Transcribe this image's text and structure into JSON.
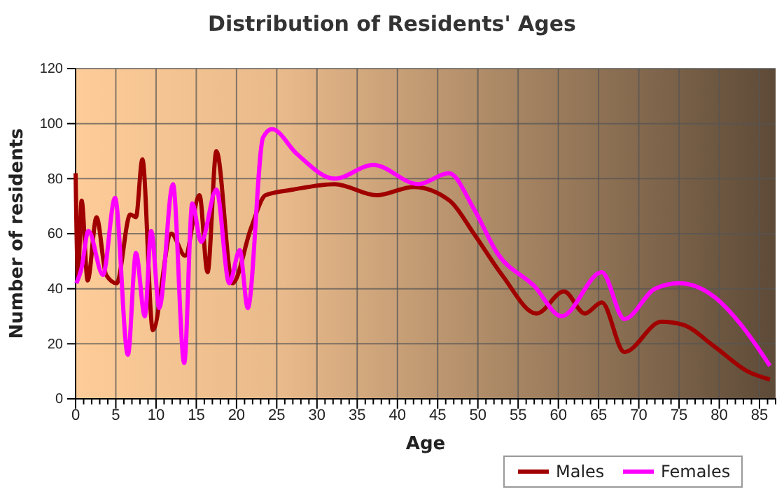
{
  "chart_data": {
    "type": "line",
    "title": "Distribution of Residents' Ages",
    "xlabel": "Age",
    "ylabel": "Number of residents",
    "xlim": [
      0,
      87
    ],
    "ylim": [
      0,
      120
    ],
    "xticks": [
      0,
      {
        "value": 1,
        "label": null
      },
      {
        "value": 2,
        "label": null
      },
      {
        "value": 3,
        "label": null
      },
      {
        "value": 4,
        "label": null
      },
      5,
      {
        "value": 6,
        "label": null
      },
      {
        "value": 7,
        "label": null
      },
      {
        "value": 8,
        "label": null
      },
      {
        "value": 9,
        "label": null
      },
      10,
      {
        "value": 11,
        "label": null
      },
      {
        "value": 12,
        "label": null
      },
      {
        "value": 13,
        "label": null
      },
      {
        "value": 14,
        "label": null
      },
      15,
      {
        "value": 16,
        "label": null
      },
      {
        "value": 17,
        "label": null
      },
      {
        "value": 18,
        "label": null
      },
      {
        "value": 19,
        "label": null
      },
      20,
      {
        "value": 21,
        "label": null
      },
      {
        "value": 22,
        "label": null
      },
      {
        "value": 23,
        "label": null
      },
      {
        "value": 24,
        "label": null
      },
      25,
      {
        "value": 26,
        "label": null
      },
      {
        "value": 27,
        "label": null
      },
      {
        "value": 28,
        "label": null
      },
      {
        "value": 29,
        "label": null
      },
      30,
      {
        "value": 31,
        "label": null
      },
      {
        "value": 32,
        "label": null
      },
      {
        "value": 33,
        "label": null
      },
      {
        "value": 34,
        "label": null
      },
      35,
      {
        "value": 36,
        "label": null
      },
      {
        "value": 37,
        "label": null
      },
      {
        "value": 38,
        "label": null
      },
      {
        "value": 39,
        "label": null
      },
      40,
      {
        "value": 41,
        "label": null
      },
      {
        "value": 42,
        "label": null
      },
      {
        "value": 43,
        "label": null
      },
      {
        "value": 44,
        "label": null
      },
      45,
      {
        "value": 46,
        "label": null
      },
      {
        "value": 47,
        "label": null
      },
      {
        "value": 48,
        "label": null
      },
      {
        "value": 49,
        "label": null
      },
      50,
      {
        "value": 51,
        "label": null
      },
      {
        "value": 52,
        "label": null
      },
      {
        "value": 53,
        "label": null
      },
      {
        "value": 54,
        "label": null
      },
      55,
      {
        "value": 56,
        "label": null
      },
      {
        "value": 57,
        "label": null
      },
      {
        "value": 58,
        "label": null
      },
      {
        "value": 59,
        "label": null
      },
      60,
      {
        "value": 61,
        "label": null
      },
      {
        "value": 62,
        "label": null
      },
      {
        "value": 63,
        "label": null
      },
      {
        "value": 64,
        "label": null
      },
      65,
      {
        "value": 66,
        "label": null
      },
      {
        "value": 67,
        "label": null
      },
      {
        "value": 68,
        "label": null
      },
      {
        "value": 69,
        "label": null
      },
      70,
      {
        "value": 71,
        "label": null
      },
      {
        "value": 72,
        "label": null
      },
      {
        "value": 73,
        "label": null
      },
      {
        "value": 74,
        "label": null
      },
      75,
      {
        "value": 76,
        "label": null
      },
      {
        "value": 77,
        "label": null
      },
      {
        "value": 78,
        "label": null
      },
      {
        "value": 79,
        "label": null
      },
      80,
      {
        "value": 81,
        "label": null
      },
      {
        "value": 82,
        "label": null
      },
      {
        "value": 83,
        "label": null
      },
      {
        "value": 84,
        "label": null
      },
      85,
      {
        "value": 86,
        "label": null
      }
    ],
    "yticks": [
      0,
      20,
      40,
      60,
      80,
      100,
      120
    ],
    "grid": true,
    "legend": "bottom right",
    "marker": "none",
    "line_style": "solid",
    "series": [
      {
        "name": "Males",
        "color": "#a00000",
        "x": [
          0,
          0.3,
          0.75,
          1.5,
          2.6,
          3.8,
          5.1,
          6.8,
          7.5,
          8.3,
          9.6,
          11.9,
          13.6,
          15.4,
          16.4,
          17.5,
          19.5,
          21.8,
          23.6,
          27,
          32.2,
          37.4,
          42,
          46.5,
          49.5,
          53,
          57.3,
          60.7,
          63.3,
          65.4,
          68.2,
          72.8,
          75.4,
          79.4,
          83.5,
          86.3
        ],
        "values": [
          82,
          44,
          72,
          43,
          66,
          45,
          42,
          67,
          66,
          87,
          25,
          60,
          52,
          74,
          46,
          90,
          42,
          62,
          74,
          76,
          78,
          74,
          77,
          72,
          60,
          45,
          31,
          39,
          31,
          35,
          17,
          28,
          27,
          19,
          10,
          7
        ]
      },
      {
        "name": "Females",
        "color": "#ff00ff",
        "x": [
          0.1,
          0.7,
          1.6,
          3.4,
          4.9,
          6.5,
          7.5,
          8.6,
          9.4,
          10.4,
          12.1,
          13.5,
          14.5,
          15.6,
          17.5,
          19.1,
          20.4,
          21.4,
          23.3,
          24.4,
          27.5,
          32.2,
          37,
          42.6,
          46.4,
          49.5,
          52.4,
          57,
          60.4,
          65.4,
          68.2,
          72,
          75,
          79.4,
          82.4,
          86.3
        ],
        "values": [
          42,
          47,
          61,
          45,
          73,
          16,
          53,
          30,
          61,
          33,
          78,
          13,
          71,
          57,
          76,
          42,
          54,
          33,
          95,
          98,
          89,
          80,
          85,
          78,
          82,
          69,
          53,
          41,
          30,
          46,
          29,
          40,
          42,
          37,
          28,
          12
        ]
      }
    ]
  }
}
